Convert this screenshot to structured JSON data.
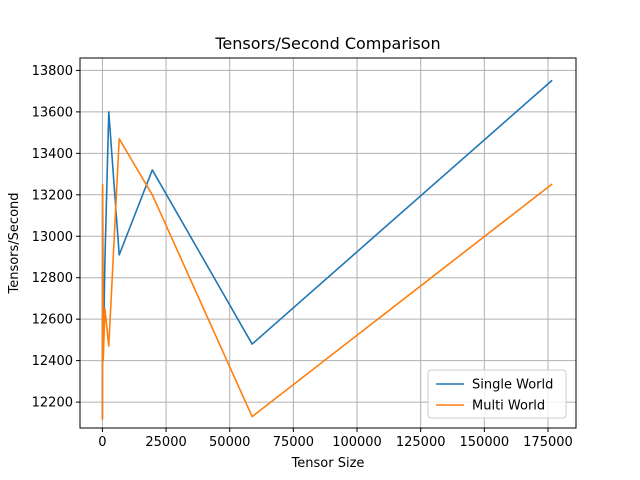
{
  "chart_data": {
    "type": "line",
    "title": "Tensors/Second Comparison",
    "xlabel": "Tensor Size",
    "ylabel": "Tensors/Second",
    "xlim": [
      -8800,
      186000
    ],
    "ylim": [
      12075,
      13860
    ],
    "xticks": [
      0,
      25000,
      50000,
      75000,
      100000,
      125000,
      150000,
      175000
    ],
    "yticks": [
      12200,
      12400,
      12600,
      12800,
      13000,
      13200,
      13400,
      13600,
      13800
    ],
    "grid": true,
    "legend_position": "bottom-right",
    "series": [
      {
        "name": "Single World",
        "color": "#1f77b4",
        "x": [
          0,
          100,
          300,
          1000,
          2500,
          6600,
          19600,
          58800,
          176400
        ],
        "y": [
          12120,
          13230,
          12400,
          12890,
          13600,
          12910,
          13320,
          12480,
          13750
        ]
      },
      {
        "name": "Multi World",
        "color": "#ff7f0e",
        "x": [
          0,
          100,
          300,
          1000,
          2500,
          6600,
          19600,
          58800,
          176400
        ],
        "y": [
          12120,
          13250,
          12400,
          12650,
          12470,
          13470,
          13200,
          12130,
          13250
        ]
      }
    ]
  }
}
